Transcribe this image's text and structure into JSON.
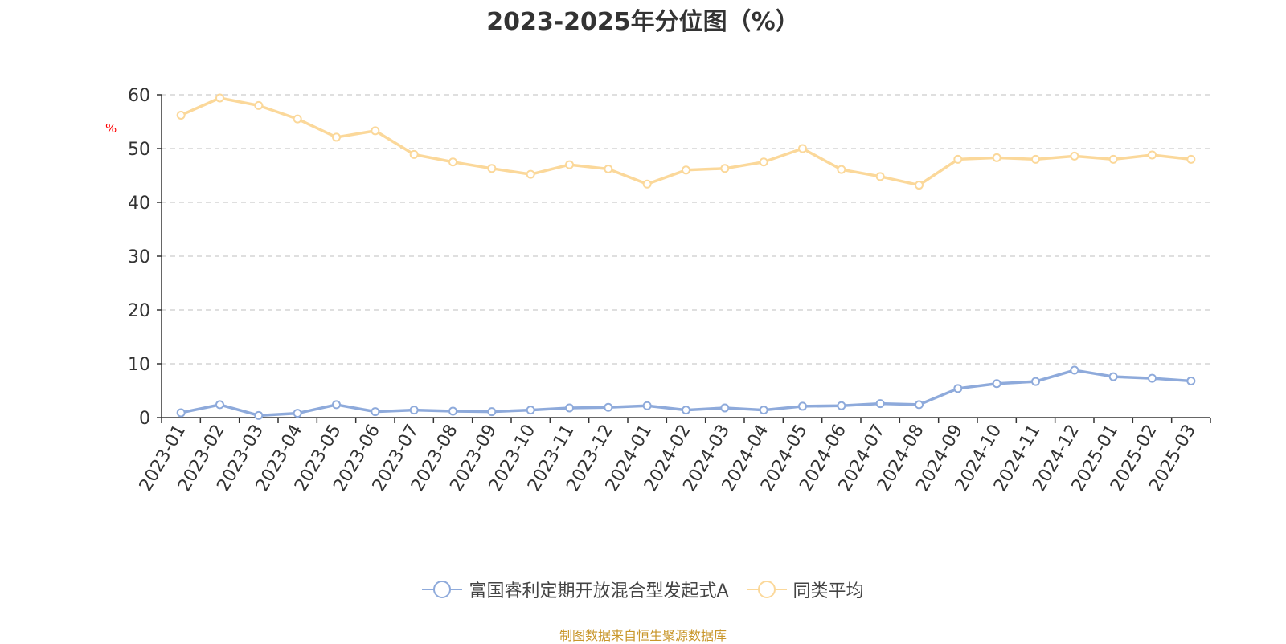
{
  "chart_data": {
    "type": "line",
    "title": "2023-2025年分位图（%）",
    "ylabel": "%",
    "xlabel": "",
    "ylim": [
      0,
      60
    ],
    "yticks": [
      0,
      10,
      20,
      30,
      40,
      50,
      60
    ],
    "grid": true,
    "legend_position": "bottom",
    "categories": [
      "2023-01",
      "2023-02",
      "2023-03",
      "2023-04",
      "2023-05",
      "2023-06",
      "2023-07",
      "2023-08",
      "2023-09",
      "2023-10",
      "2023-11",
      "2023-12",
      "2024-01",
      "2024-02",
      "2024-03",
      "2024-04",
      "2024-05",
      "2024-06",
      "2024-07",
      "2024-08",
      "2024-09",
      "2024-10",
      "2024-11",
      "2024-12",
      "2025-01",
      "2025-02",
      "2025-03"
    ],
    "series": [
      {
        "name": "富国睿利定期开放混合型发起式A",
        "color": "#8eaadb",
        "values": [
          0.9,
          2.4,
          0.4,
          0.8,
          2.4,
          1.1,
          1.4,
          1.2,
          1.1,
          1.4,
          1.8,
          1.9,
          2.2,
          1.4,
          1.8,
          1.4,
          2.1,
          2.2,
          2.6,
          2.4,
          5.4,
          6.3,
          6.7,
          8.8,
          7.6,
          7.3,
          6.8
        ]
      },
      {
        "name": "同类平均",
        "color": "#fbd89a",
        "values": [
          56.2,
          59.4,
          58.0,
          55.5,
          52.1,
          53.3,
          48.9,
          47.5,
          46.3,
          45.2,
          47.0,
          46.2,
          43.4,
          46.0,
          46.3,
          47.5,
          50.0,
          46.1,
          44.8,
          43.2,
          48.0,
          48.3,
          48.0,
          48.6,
          48.0,
          48.8,
          48.0
        ]
      }
    ]
  },
  "source_note": "制图数据来自恒生聚源数据库"
}
